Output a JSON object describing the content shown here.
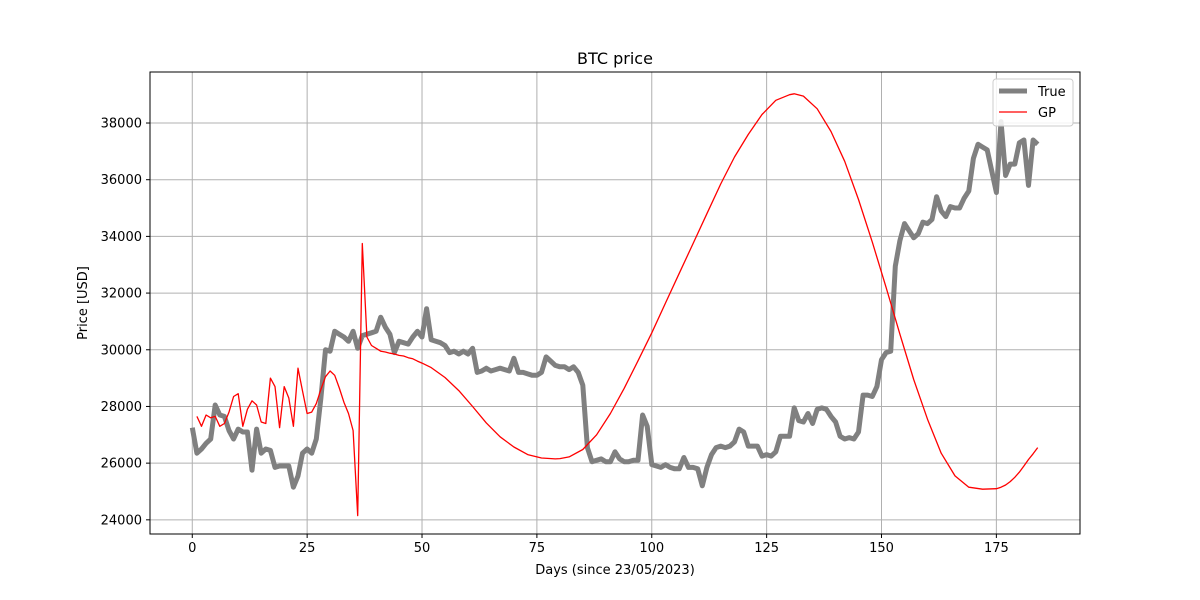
{
  "chart_data": {
    "type": "line",
    "title": "BTC price",
    "xlabel": "Days (since 23/05/2023)",
    "ylabel": "Price [USD]",
    "xlim": [
      -9.2,
      193.2
    ],
    "ylim": [
      23500,
      39800
    ],
    "x_ticks": [
      0,
      25,
      50,
      75,
      100,
      125,
      150,
      175
    ],
    "y_ticks": [
      24000,
      26000,
      28000,
      30000,
      32000,
      34000,
      36000,
      38000
    ],
    "grid": true,
    "legend_position": "top-right",
    "series": [
      {
        "name": "True",
        "color": "#808080",
        "x": [
          0,
          1,
          2,
          3,
          4,
          5,
          6,
          7,
          8,
          9,
          10,
          11,
          12,
          13,
          14,
          15,
          16,
          17,
          18,
          19,
          20,
          21,
          22,
          23,
          24,
          25,
          26,
          27,
          28,
          29,
          30,
          31,
          32,
          33,
          34,
          35,
          36,
          37,
          38,
          39,
          40,
          41,
          42,
          43,
          44,
          45,
          46,
          47,
          48,
          49,
          50,
          51,
          52,
          53,
          54,
          55,
          56,
          57,
          58,
          59,
          60,
          61,
          62,
          63,
          64,
          65,
          66,
          67,
          68,
          69,
          70,
          71,
          72,
          73,
          74,
          75,
          76,
          77,
          78,
          79,
          80,
          81,
          82,
          83,
          84,
          85,
          86,
          87,
          88,
          89,
          90,
          91,
          92,
          93,
          94,
          95,
          96,
          97,
          98,
          99,
          100,
          101,
          102,
          103,
          104,
          105,
          106,
          107,
          108,
          109,
          110,
          111,
          112,
          113,
          114,
          115,
          116,
          117,
          118,
          119,
          120,
          121,
          122,
          123,
          124,
          125,
          126,
          127,
          128,
          129,
          130,
          131,
          132,
          133,
          134,
          135,
          136,
          137,
          138,
          139,
          140,
          141,
          142,
          143,
          144,
          145,
          146,
          147,
          148,
          149,
          150,
          151,
          152,
          153,
          154,
          155,
          156,
          157,
          158,
          159,
          160,
          161,
          162,
          163,
          164,
          165,
          166,
          167,
          168,
          169,
          170,
          171,
          172,
          173,
          174,
          175,
          176,
          177,
          178,
          179,
          180,
          181,
          182,
          183,
          184
        ],
        "values": [
          27250,
          26350,
          26500,
          26700,
          26850,
          28050,
          27700,
          27650,
          27150,
          26850,
          27200,
          27100,
          27100,
          25750,
          27200,
          26350,
          26500,
          26450,
          25850,
          25900,
          25900,
          25900,
          25150,
          25550,
          26350,
          26500,
          26350,
          26850,
          28300,
          30000,
          29950,
          30650,
          30550,
          30450,
          30300,
          30650,
          30050,
          30500,
          30550,
          30600,
          30650,
          31150,
          30800,
          30550,
          29900,
          30300,
          30250,
          30200,
          30450,
          30650,
          30450,
          31450,
          30350,
          30300,
          30250,
          30150,
          29900,
          29950,
          29850,
          29950,
          29850,
          30050,
          29200,
          29250,
          29350,
          29250,
          29300,
          29350,
          29300,
          29250,
          29700,
          29200,
          29200,
          29150,
          29100,
          29100,
          29200,
          29750,
          29600,
          29450,
          29400,
          29400,
          29300,
          29400,
          29200,
          28750,
          26550,
          26050,
          26100,
          26150,
          26050,
          26050,
          26400,
          26150,
          26050,
          26050,
          26100,
          26100,
          27700,
          27300,
          25950,
          25900,
          25850,
          25950,
          25850,
          25800,
          25800,
          26200,
          25850,
          25850,
          25800,
          25200,
          25850,
          26300,
          26550,
          26600,
          26550,
          26600,
          26750,
          27200,
          27100,
          26600,
          26600,
          26600,
          26250,
          26300,
          26250,
          26400,
          26950,
          26950,
          26950,
          27950,
          27500,
          27450,
          27750,
          27400,
          27900,
          27950,
          27900,
          27650,
          27450,
          26950,
          26850,
          26900,
          26850,
          27100,
          28400,
          28400,
          28350,
          28700,
          29650,
          29900,
          29950,
          32950,
          33850,
          34450,
          34200,
          33950,
          34100,
          34500,
          34450,
          34600,
          35400,
          34900,
          34700,
          35050,
          35000,
          35000,
          35350,
          35600,
          36750,
          37250,
          37150,
          37050,
          36300,
          35550,
          38050,
          36150,
          36550,
          36550,
          37300,
          37400,
          35800,
          37400,
          37250
        ]
      },
      {
        "name": "GP",
        "color": "#ff0000",
        "x": [
          1,
          2,
          3,
          4,
          5,
          6,
          7,
          8,
          9,
          10,
          11,
          12,
          13,
          14,
          15,
          16,
          17,
          18,
          19,
          20,
          21,
          22,
          23,
          24,
          25,
          26,
          27,
          28,
          29,
          30,
          31,
          32,
          33,
          34,
          35,
          36,
          37,
          38,
          39,
          40,
          41,
          42,
          43,
          44,
          45,
          46,
          47,
          48,
          49,
          50,
          52,
          55,
          58,
          61,
          64,
          67,
          70,
          73,
          76,
          79,
          80,
          82,
          85,
          88,
          91,
          94,
          97,
          100,
          103,
          106,
          109,
          112,
          115,
          118,
          121,
          124,
          127,
          130,
          131,
          133,
          136,
          139,
          142,
          145,
          148,
          151,
          154,
          157,
          160,
          163,
          166,
          169,
          172,
          175,
          176,
          177,
          178,
          179,
          180,
          181,
          182,
          183,
          184
        ],
        "values": [
          27650,
          27300,
          27700,
          27600,
          27650,
          27300,
          27400,
          27800,
          28350,
          28450,
          27300,
          27900,
          28200,
          28050,
          27450,
          27400,
          29000,
          28700,
          27250,
          28700,
          28300,
          27300,
          29350,
          28550,
          27750,
          27800,
          28100,
          28600,
          29050,
          29250,
          29100,
          28650,
          28150,
          27750,
          27150,
          24150,
          33750,
          30450,
          30150,
          30050,
          29950,
          29920,
          29880,
          29850,
          29800,
          29780,
          29720,
          29680,
          29600,
          29530,
          29370,
          29020,
          28560,
          28000,
          27420,
          26930,
          26570,
          26300,
          26180,
          26150,
          26160,
          26220,
          26480,
          27000,
          27750,
          28640,
          29610,
          30600,
          31650,
          32700,
          33750,
          34800,
          35850,
          36800,
          37600,
          38300,
          38800,
          39000,
          39030,
          38950,
          38500,
          37700,
          36650,
          35300,
          33800,
          32200,
          30550,
          28950,
          27550,
          26350,
          25550,
          25150,
          25080,
          25100,
          25150,
          25230,
          25350,
          25500,
          25680,
          25900,
          26130,
          26330,
          26550
        ]
      }
    ]
  }
}
